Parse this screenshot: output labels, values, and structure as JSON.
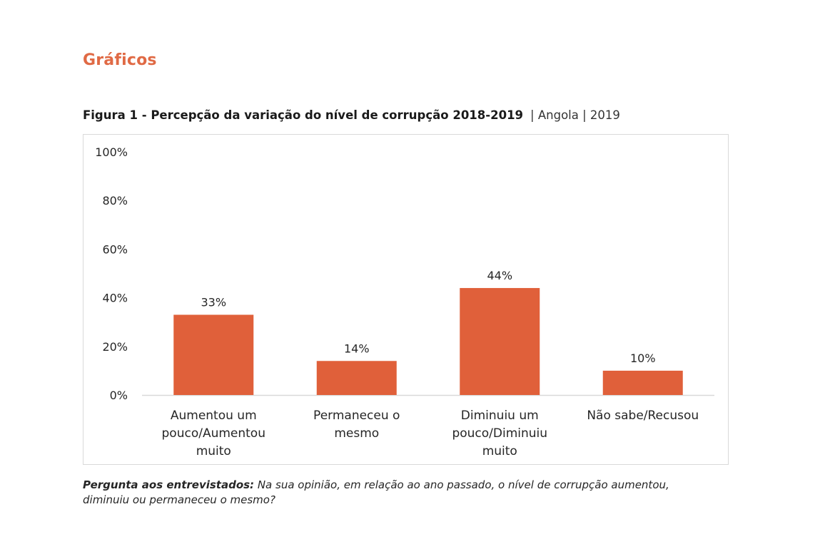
{
  "section_title": "Gráficos",
  "figure": {
    "title_bold": "Figura 1 - Percepção da variação do nível de corrupção 2018-2019",
    "title_meta": "| Angola | 2019"
  },
  "colors": {
    "accent": "#e06a45",
    "bar": "#e0603a",
    "axis": "#d9d9d9",
    "text": "#262626"
  },
  "chart_data": {
    "type": "bar",
    "title": "Figura 1 - Percepção da variação do nível de corrupção 2018-2019",
    "subtitle": "| Angola | 2019",
    "xlabel": "",
    "ylabel": "",
    "ylim": [
      0,
      100
    ],
    "yticks": [
      0,
      20,
      40,
      60,
      80,
      100
    ],
    "ytick_labels": [
      "0%",
      "20%",
      "40%",
      "60%",
      "80%",
      "100%"
    ],
    "grid": false,
    "legend": "none",
    "categories": [
      [
        "Aumentou um",
        "pouco/Aumentou",
        "muito"
      ],
      [
        "Permaneceu o",
        "mesmo"
      ],
      [
        "Diminuiu um",
        "pouco/Diminuiu",
        "muito"
      ],
      [
        "Não sabe/Recusou"
      ]
    ],
    "values": [
      33,
      14,
      44,
      10
    ],
    "data_labels": [
      "33%",
      "14%",
      "44%",
      "10%"
    ]
  },
  "caption": {
    "lead": "Pergunta aos entrevistados:",
    "text": " Na sua opinião, em relação ao ano passado, o nível de corrupção aumentou, diminuiu ou permaneceu o mesmo?"
  }
}
